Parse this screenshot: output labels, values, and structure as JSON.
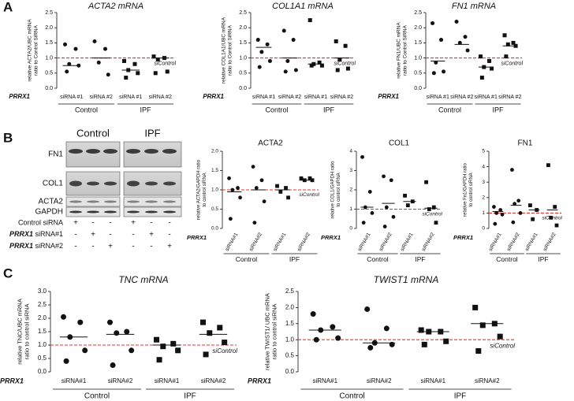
{
  "panel_labels": [
    "A",
    "B",
    "C"
  ],
  "blot": {
    "columns": [
      "Control",
      "IPF"
    ],
    "proteins": [
      "FN1",
      "COL1",
      "ACTA2",
      "GAPDH"
    ],
    "conditions": [
      {
        "label": "Control siRNA",
        "signs": [
          "+",
          "-",
          "-",
          "+",
          "-",
          "-"
        ]
      },
      {
        "gene": "PRRX1",
        "label": "siRNA#1",
        "signs": [
          "-",
          "+",
          "-",
          "-",
          "+",
          "-"
        ]
      },
      {
        "gene": "PRRX1",
        "label": "siRNA#2",
        "signs": [
          "-",
          "-",
          "+",
          "-",
          "-",
          "+"
        ]
      }
    ]
  },
  "chart_data": [
    {
      "type": "dot",
      "title": "ACTA2 mRNA",
      "title_style": "italic",
      "ylabel": [
        "relative ACTA2/UBC mRNA",
        "ratio to Control SiRNA"
      ],
      "row_label": "PRRX1",
      "categories": [
        "siRNA #1",
        "siRNA #2",
        "siRNA #1",
        "siRNA #2"
      ],
      "groups": [
        "Control",
        "IPF"
      ],
      "marker": [
        "circle",
        "circle",
        "square",
        "square"
      ],
      "color": "#111111",
      "points": [
        [
          1.45,
          1.3,
          0.8,
          0.75,
          0.55
        ],
        [
          1.55,
          1.3,
          0.85,
          0.45
        ],
        [
          0.9,
          0.8,
          0.6,
          0.5,
          0.35
        ],
        [
          1.05,
          1.0,
          0.95,
          0.55,
          0.5
        ]
      ],
      "medians": [
        0.75,
        1.0,
        0.6,
        1.0
      ],
      "reference": {
        "value": 1,
        "label": "siControl",
        "color": "#e8322b"
      },
      "ylim": [
        0,
        2.5
      ],
      "yticks": [
        {
          "value": 0,
          "label": "0.0"
        },
        {
          "value": 0.5,
          "label": "0.5"
        },
        {
          "value": 1,
          "label": "1.0"
        },
        {
          "value": 1.5,
          "label": "1.5"
        },
        {
          "value": 2,
          "label": "2.0"
        },
        {
          "value": 2.5,
          "label": "2.5"
        }
      ]
    },
    {
      "type": "dot",
      "title": "COL1A1 mRNA",
      "title_style": "italic",
      "ylabel": [
        "relative COL1A1/UBC mRNA",
        "ratio to Control SiRNA"
      ],
      "row_label": "PRRX1",
      "categories": [
        "siRNA #1",
        "siRNA #2",
        "siRNA #1",
        "siRNA #2"
      ],
      "groups": [
        "Control",
        "IPF"
      ],
      "marker": [
        "circle",
        "circle",
        "square",
        "square"
      ],
      "color": "#111111",
      "points": [
        [
          1.6,
          1.45,
          1.2,
          0.9,
          0.7
        ],
        [
          1.9,
          1.6,
          0.9,
          0.6,
          0.55
        ],
        [
          2.25,
          0.85,
          0.8,
          0.75,
          0.75
        ],
        [
          1.55,
          1.4,
          0.95,
          0.65,
          0.6
        ]
      ],
      "medians": [
        1.35,
        1.0,
        0.8,
        1.0
      ],
      "reference": {
        "value": 1,
        "label": "siControl",
        "color": "#e8322b"
      },
      "ylim": [
        0,
        2.5
      ],
      "yticks": [
        {
          "value": 0,
          "label": "0.0"
        },
        {
          "value": 0.5,
          "label": "0.5"
        },
        {
          "value": 1,
          "label": "1.0"
        },
        {
          "value": 1.5,
          "label": "1.5"
        },
        {
          "value": 2,
          "label": "2.0"
        },
        {
          "value": 2.5,
          "label": "2.5"
        }
      ]
    },
    {
      "type": "dot",
      "title": "FN1 mRNA",
      "title_style": "italic",
      "ylabel": [
        "relative FN1/UBC mRNA",
        "ratio to Control SiRNA"
      ],
      "row_label": "PRRX1",
      "categories": [
        "siRNA #1",
        "siRNA #2",
        "siRNA #1",
        "siRNA #2"
      ],
      "groups": [
        "Control",
        "IPF"
      ],
      "marker": [
        "circle",
        "circle",
        "square",
        "square"
      ],
      "color": "#111111",
      "points": [
        [
          2.15,
          1.6,
          0.85,
          0.55,
          0.5
        ],
        [
          2.2,
          1.7,
          1.5,
          1.25
        ],
        [
          1.05,
          0.9,
          0.7,
          0.65,
          0.35
        ],
        [
          1.75,
          1.5,
          1.45,
          1.4,
          1.05
        ]
      ],
      "medians": [
        0.9,
        1.45,
        0.7,
        1.4
      ],
      "reference": {
        "value": 1,
        "label": "siControl",
        "color": "#e8322b"
      },
      "ylim": [
        0,
        2.5
      ],
      "yticks": [
        {
          "value": 0,
          "label": "0.0"
        },
        {
          "value": 0.5,
          "label": "0.5"
        },
        {
          "value": 1,
          "label": "1.0"
        },
        {
          "value": 1.5,
          "label": "1.5"
        },
        {
          "value": 2,
          "label": "2.0"
        },
        {
          "value": 2.5,
          "label": "2.5"
        }
      ]
    },
    {
      "type": "dot",
      "title": "ACTA2",
      "title_style": "normal",
      "ylabel": [
        "relative ACTA2/GAPDH ratio",
        "to control siRNA"
      ],
      "row_label": "PRRX1",
      "categories": [
        "siRNA#1",
        "siRNA#2",
        "siRNA#1",
        "siRNA#2"
      ],
      "groups": [
        "Control",
        "IPF"
      ],
      "marker": [
        "circle",
        "circle",
        "square",
        "square"
      ],
      "color": "#111111",
      "points": [
        [
          1.3,
          1.05,
          1.0,
          0.8,
          0.25
        ],
        [
          1.6,
          1.25,
          1.05,
          0.7,
          0.15
        ],
        [
          1.1,
          1.05,
          0.95,
          0.8
        ],
        [
          1.3,
          1.3,
          1.25,
          1.25
        ]
      ],
      "medians": [
        0.95,
        1.0,
        1.0,
        1.25
      ],
      "reference": {
        "value": 1,
        "label": "siControl",
        "color": "#e8322b"
      },
      "ylim": [
        0,
        2
      ],
      "yticks": [
        {
          "value": 0,
          "label": "0.0"
        },
        {
          "value": 0.5,
          "label": "0.5"
        },
        {
          "value": 1,
          "label": "1.0"
        },
        {
          "value": 1.5,
          "label": "1.5"
        },
        {
          "value": 2,
          "label": "2.0"
        }
      ]
    },
    {
      "type": "dot",
      "title": "COL1",
      "title_style": "normal",
      "ylabel": [
        "relative COL1/GAPDH ratio",
        "to control siRNA"
      ],
      "row_label": "PRRX1",
      "categories": [
        "siRNA#1",
        "siRNA#2",
        "siRNA#1",
        "siRNA#2"
      ],
      "groups": [
        "Control",
        "IPF"
      ],
      "marker": [
        "circle",
        "circle",
        "square",
        "square"
      ],
      "color": "#111111",
      "points": [
        [
          3.7,
          1.9,
          1.1,
          0.8,
          0.3
        ],
        [
          2.7,
          2.5,
          1.1,
          0.6,
          0.1
        ],
        [
          1.7,
          1.4,
          1.2
        ],
        [
          2.4,
          1.1,
          1.0,
          0.3
        ]
      ],
      "medians": [
        1.1,
        1.3,
        1.4,
        1.05
      ],
      "reference": {
        "value": 1,
        "label": "siControl",
        "color": "#e8322b"
      },
      "ylim": [
        0,
        4
      ],
      "yticks": [
        0,
        1,
        2,
        3,
        4
      ]
    },
    {
      "type": "dot",
      "title": "FN1",
      "title_style": "normal",
      "ylabel": [
        "relative Fn1/GAPDH ratio",
        "to control siRNA"
      ],
      "row_label": "PRRX1",
      "categories": [
        "siRNA#1",
        "siRNA#2",
        "siRNA#1",
        "siRNA#2"
      ],
      "groups": [
        "Control",
        "IPF"
      ],
      "marker": [
        "circle",
        "circle",
        "square",
        "square"
      ],
      "color": "#111111",
      "points": [
        [
          1.4,
          1.2,
          1.0,
          0.9,
          0.3
        ],
        [
          3.8,
          1.8,
          1.6,
          1.0,
          0.4
        ],
        [
          1.5,
          1.2,
          0.6
        ],
        [
          4.1,
          1.4,
          0.7,
          0.2
        ]
      ],
      "medians": [
        1.1,
        1.5,
        1.2,
        1.2
      ],
      "reference": {
        "value": 1,
        "label": "siControl",
        "color": "#e8322b"
      },
      "ylim": [
        0,
        5
      ],
      "yticks": [
        0,
        1,
        2,
        3,
        4,
        5
      ]
    },
    {
      "type": "dot",
      "title": "TNC mRNA",
      "title_style": "italic",
      "ylabel": [
        "relative TNC/UBC mRNA",
        "ratio to control siRNA"
      ],
      "row_label": "PRRX1",
      "categories": [
        "siRNA#1",
        "siRNA#2",
        "siRNA#1",
        "siRNA#2"
      ],
      "groups": [
        "Control",
        "IPF"
      ],
      "marker": [
        "circle",
        "circle",
        "square",
        "square"
      ],
      "color": "#111111",
      "points": [
        [
          2.05,
          1.85,
          1.3,
          0.8,
          0.4
        ],
        [
          1.85,
          1.5,
          1.45,
          0.8,
          0.25
        ],
        [
          1.2,
          1.05,
          0.95,
          0.8,
          0.45
        ],
        [
          1.85,
          1.65,
          1.45,
          1.1,
          0.65
        ]
      ],
      "medians": [
        1.3,
        1.4,
        1.0,
        1.4
      ],
      "reference": {
        "value": 1,
        "label": "siControl",
        "color": "#e8322b"
      },
      "ylim": [
        0,
        3
      ],
      "yticks": [
        {
          "value": 0,
          "label": "0.0"
        },
        {
          "value": 0.5,
          "label": "0.5"
        },
        {
          "value": 1,
          "label": "1.0"
        },
        {
          "value": 1.5,
          "label": "1.5"
        },
        {
          "value": 2,
          "label": "2.0"
        },
        {
          "value": 2.5,
          "label": "2.5"
        },
        {
          "value": 3,
          "label": "3.0"
        }
      ]
    },
    {
      "type": "dot",
      "title": "TWIST1 mRNA",
      "title_style": "italic",
      "ylabel": [
        "relative TWIST1/ UBC mRNA",
        "ratio to control siRNA"
      ],
      "row_label": "PRRX1",
      "categories": [
        "siRNA#1",
        "siRNA#2",
        "siRNA#1",
        "siRNA#2"
      ],
      "groups": [
        "Control",
        "IPF"
      ],
      "marker": [
        "circle",
        "circle",
        "square",
        "square"
      ],
      "color": "#111111",
      "points": [
        [
          1.8,
          1.4,
          1.3,
          1.05,
          1.0
        ],
        [
          1.95,
          1.35,
          0.9,
          0.85,
          0.75
        ],
        [
          1.3,
          1.25,
          1.25,
          0.95,
          0.85
        ],
        [
          2.0,
          1.5,
          1.45,
          1.1,
          0.65
        ]
      ],
      "medians": [
        1.3,
        0.9,
        1.25,
        1.5
      ],
      "reference": {
        "value": 1,
        "label": "siControl",
        "color": "#e8322b"
      },
      "ylim": [
        0,
        2.5
      ],
      "yticks": [
        {
          "value": 0,
          "label": "0.0"
        },
        {
          "value": 0.5,
          "label": "0.5"
        },
        {
          "value": 1,
          "label": "1.0"
        },
        {
          "value": 1.5,
          "label": "1.5"
        },
        {
          "value": 2,
          "label": "2.0"
        },
        {
          "value": 2.5,
          "label": "2.5"
        }
      ]
    }
  ]
}
